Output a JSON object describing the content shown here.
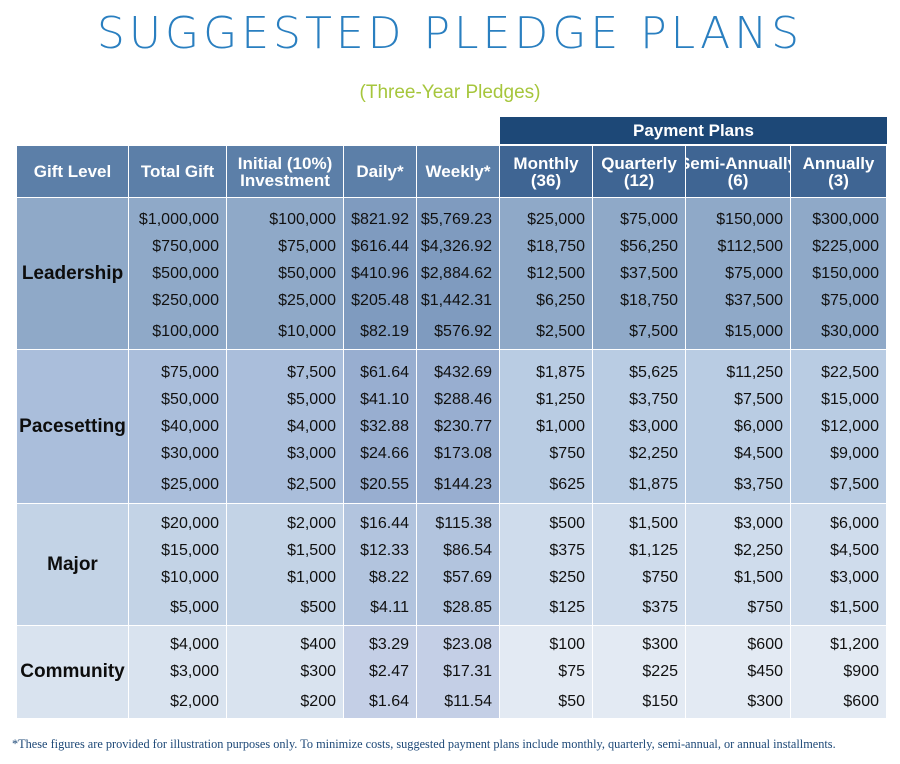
{
  "title": "SUGGESTED PLEDGE PLANS",
  "subtitle": "(Three-Year Pledges)",
  "payment_plans_header": "Payment Plans",
  "columns": {
    "gift_level": "Gift Level",
    "total_gift": "Total Gift",
    "initial_line1": "Initial (10%)",
    "initial_line2": "Investment",
    "daily": "Daily*",
    "weekly": "Weekly*",
    "monthly_line1": "Monthly",
    "monthly_line2": "(36)",
    "quarterly_line1": "Quarterly",
    "quarterly_line2": "(12)",
    "semi_line1": "Semi-Annually",
    "semi_line2": "(6)",
    "annually_line1": "Annually",
    "annually_line2": "(3)"
  },
  "colors": {
    "title": "#2a7fc0",
    "subtitle": "#a6c63c",
    "header_dark": "#1d4877",
    "header": "#5c7fa8"
  },
  "groups": [
    {
      "label": "Leadership",
      "rows": [
        [
          "$1,000,000",
          "$100,000",
          "$821.92",
          "$5,769.23",
          "$25,000",
          "$75,000",
          "$150,000",
          "$300,000"
        ],
        [
          "$750,000",
          "$75,000",
          "$616.44",
          "$4,326.92",
          "$18,750",
          "$56,250",
          "$112,500",
          "$225,000"
        ],
        [
          "$500,000",
          "$50,000",
          "$410.96",
          "$2,884.62",
          "$12,500",
          "$37,500",
          "$75,000",
          "$150,000"
        ],
        [
          "$250,000",
          "$25,000",
          "$205.48",
          "$1,442.31",
          "$6,250",
          "$18,750",
          "$37,500",
          "$75,000"
        ],
        [
          "$100,000",
          "$10,000",
          "$82.19",
          "$576.92",
          "$2,500",
          "$7,500",
          "$15,000",
          "$30,000"
        ]
      ]
    },
    {
      "label": "Pacesetting",
      "rows": [
        [
          "$75,000",
          "$7,500",
          "$61.64",
          "$432.69",
          "$1,875",
          "$5,625",
          "$11,250",
          "$22,500"
        ],
        [
          "$50,000",
          "$5,000",
          "$41.10",
          "$288.46",
          "$1,250",
          "$3,750",
          "$7,500",
          "$15,000"
        ],
        [
          "$40,000",
          "$4,000",
          "$32.88",
          "$230.77",
          "$1,000",
          "$3,000",
          "$6,000",
          "$12,000"
        ],
        [
          "$30,000",
          "$3,000",
          "$24.66",
          "$173.08",
          "$750",
          "$2,250",
          "$4,500",
          "$9,000"
        ],
        [
          "$25,000",
          "$2,500",
          "$20.55",
          "$144.23",
          "$625",
          "$1,875",
          "$3,750",
          "$7,500"
        ]
      ]
    },
    {
      "label": "Major",
      "rows": [
        [
          "$20,000",
          "$2,000",
          "$16.44",
          "$115.38",
          "$500",
          "$1,500",
          "$3,000",
          "$6,000"
        ],
        [
          "$15,000",
          "$1,500",
          "$12.33",
          "$86.54",
          "$375",
          "$1,125",
          "$2,250",
          "$4,500"
        ],
        [
          "$10,000",
          "$1,000",
          "$8.22",
          "$57.69",
          "$250",
          "$750",
          "$1,500",
          "$3,000"
        ],
        [
          "$5,000",
          "$500",
          "$4.11",
          "$28.85",
          "$125",
          "$375",
          "$750",
          "$1,500"
        ]
      ]
    },
    {
      "label": "Community",
      "rows": [
        [
          "$4,000",
          "$400",
          "$3.29",
          "$23.08",
          "$100",
          "$300",
          "$600",
          "$1,200"
        ],
        [
          "$3,000",
          "$300",
          "$2.47",
          "$17.31",
          "$75",
          "$225",
          "$450",
          "$900"
        ],
        [
          "$2,000",
          "$200",
          "$1.64",
          "$11.54",
          "$50",
          "$150",
          "$300",
          "$600"
        ]
      ]
    }
  ],
  "footnote": "*These figures are provided for illustration purposes only. To minimize costs, suggested payment plans include monthly, quarterly, semi-annual, or annual installments."
}
